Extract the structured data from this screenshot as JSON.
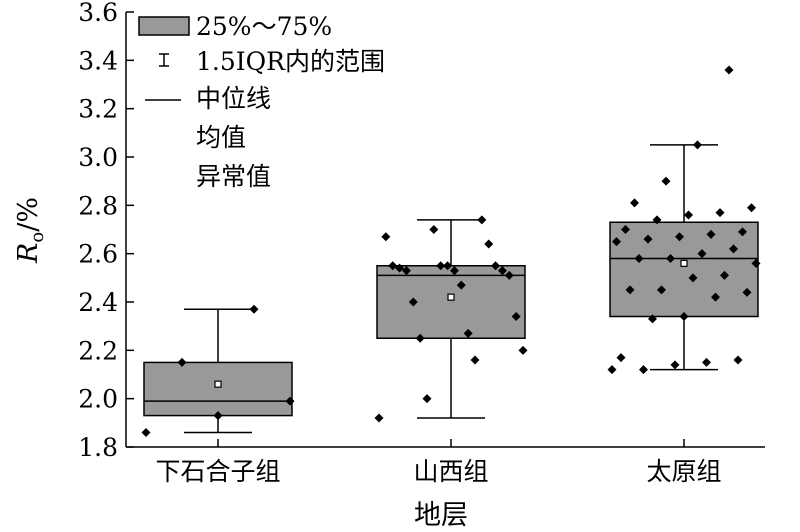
{
  "chart_data": {
    "type": "box",
    "xlabel": "地层",
    "ylabel_main": "R",
    "ylabel_sub": "o",
    "ylabel_unit": "/%",
    "ylim": [
      1.8,
      3.6
    ],
    "yticks": [
      "1.8",
      "2.0",
      "2.2",
      "2.4",
      "2.6",
      "2.8",
      "3.0",
      "3.2",
      "3.4",
      "3.6"
    ],
    "categories": [
      "下石合子组",
      "山西组",
      "太原组"
    ],
    "legend": {
      "box": "25%～75%",
      "whisker": "1.5IQR内的范围",
      "median": "中位线",
      "mean": "均值",
      "outlier": "异常值"
    },
    "colors": {
      "box_fill": "#999999",
      "stroke": "#000000"
    },
    "boxes": [
      {
        "category": "下石合子组",
        "q1": 1.93,
        "median": 1.99,
        "q3": 2.15,
        "mean": 2.06,
        "whisker_low": 1.86,
        "whisker_high": 2.37,
        "points": [
          1.86,
          1.93,
          1.99,
          2.15,
          2.37
        ]
      },
      {
        "category": "山西组",
        "q1": 2.25,
        "median": 2.51,
        "q3": 2.55,
        "mean": 2.42,
        "whisker_low": 1.92,
        "whisker_high": 2.74,
        "points": [
          1.92,
          2.0,
          2.16,
          2.2,
          2.25,
          2.27,
          2.34,
          2.4,
          2.47,
          2.51,
          2.53,
          2.53,
          2.53,
          2.54,
          2.55,
          2.55,
          2.55,
          2.55,
          2.64,
          2.67,
          2.7,
          2.74
        ]
      },
      {
        "category": "太原组",
        "q1": 2.34,
        "median": 2.58,
        "q3": 2.73,
        "mean": 2.56,
        "whisker_low": 2.12,
        "whisker_high": 3.05,
        "points": [
          2.12,
          2.12,
          2.14,
          2.15,
          2.16,
          2.17,
          2.33,
          2.34,
          2.42,
          2.44,
          2.45,
          2.45,
          2.5,
          2.51,
          2.56,
          2.58,
          2.58,
          2.6,
          2.62,
          2.65,
          2.66,
          2.67,
          2.68,
          2.69,
          2.7,
          2.74,
          2.76,
          2.77,
          2.79,
          2.81,
          2.9,
          3.05,
          3.36
        ]
      }
    ]
  }
}
